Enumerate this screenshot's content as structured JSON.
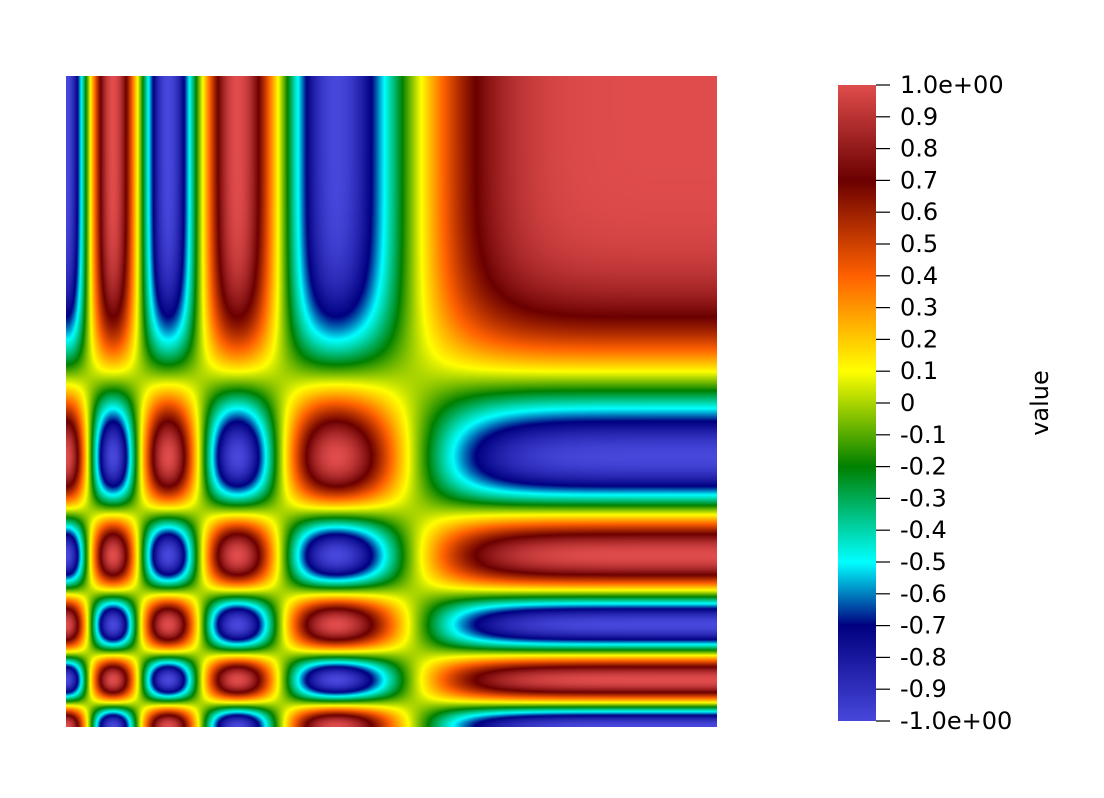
{
  "chart_data": {
    "type": "heatmap",
    "field": "sin(5*pi*(1-x)^3) * sin(5*pi*(1-y)^3) style standing-wave pattern, values in [-1, 1]",
    "colormap": "rainbow-desaturated (ParaView jet-like)",
    "colormap_stops": [
      {
        "v": -1.0,
        "color": "#4747db"
      },
      {
        "v": -0.7,
        "color": "#000080"
      },
      {
        "v": -0.5,
        "color": "#00ffff"
      },
      {
        "v": -0.2,
        "color": "#008000"
      },
      {
        "v": 0.1,
        "color": "#ffff00"
      },
      {
        "v": 0.4,
        "color": "#ff6000"
      },
      {
        "v": 0.7,
        "color": "#6b0000"
      },
      {
        "v": 1.0,
        "color": "#e04c4c"
      }
    ],
    "range": [
      -1.0,
      1.0
    ],
    "colorbar": {
      "title": "value",
      "ticks": [
        {
          "v": 1.0,
          "label": "1.0e+00"
        },
        {
          "v": 0.9,
          "label": "0.9"
        },
        {
          "v": 0.8,
          "label": "0.8"
        },
        {
          "v": 0.7,
          "label": "0.7"
        },
        {
          "v": 0.6,
          "label": "0.6"
        },
        {
          "v": 0.5,
          "label": "0.5"
        },
        {
          "v": 0.4,
          "label": "0.4"
        },
        {
          "v": 0.3,
          "label": "0.3"
        },
        {
          "v": 0.2,
          "label": "0.2"
        },
        {
          "v": 0.1,
          "label": "0.1"
        },
        {
          "v": 0.0,
          "label": "0"
        },
        {
          "v": -0.1,
          "label": "-0.1"
        },
        {
          "v": -0.2,
          "label": "-0.2"
        },
        {
          "v": -0.3,
          "label": "-0.3"
        },
        {
          "v": -0.4,
          "label": "-0.4"
        },
        {
          "v": -0.5,
          "label": "-0.5"
        },
        {
          "v": -0.6,
          "label": "-0.6"
        },
        {
          "v": -0.7,
          "label": "-0.7"
        },
        {
          "v": -0.8,
          "label": "-0.8"
        },
        {
          "v": -0.9,
          "label": "-0.9"
        },
        {
          "v": -1.0,
          "label": "-1.0e+00"
        }
      ]
    }
  }
}
